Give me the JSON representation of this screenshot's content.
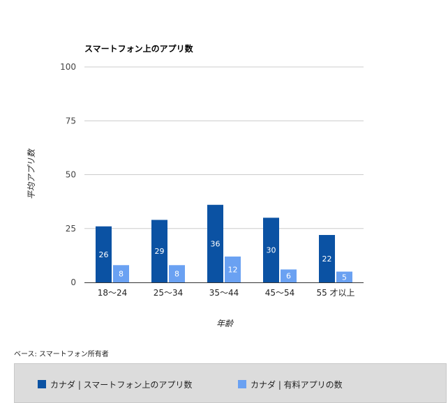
{
  "chart_data": {
    "type": "bar",
    "title": "スマートフォン上のアプリ数",
    "xlabel": "年齢",
    "ylabel": "平均アプリ数",
    "ylim": [
      0,
      100
    ],
    "yticks": [
      0,
      25,
      50,
      75,
      100
    ],
    "grid": true,
    "legend_position": "bottom",
    "categories": [
      "18〜24",
      "25〜34",
      "35〜44",
      "45〜54",
      "55 才以上"
    ],
    "series": [
      {
        "name": "カナダ | スマートフォン上のアプリ数",
        "values": [
          26,
          29,
          36,
          30,
          22
        ],
        "color": "#0b52a3"
      },
      {
        "name": "カナダ | 有料アプリの数",
        "values": [
          8,
          8,
          12,
          6,
          5
        ],
        "color": "#6aa1f2"
      }
    ]
  },
  "note": "ベース: スマートフォン所有者"
}
